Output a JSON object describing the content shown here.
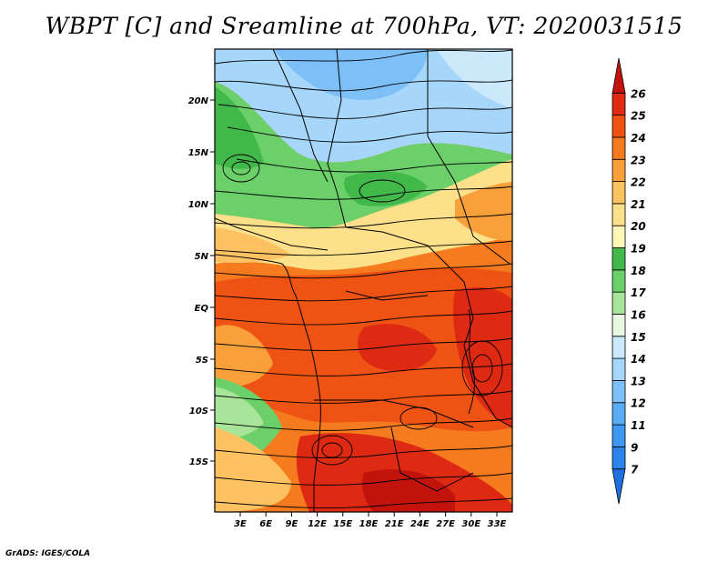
{
  "title": "WBPT [C] and Sreamline at 700hPa, VT: 2020031515",
  "footer": "GrADS: IGES/COLA",
  "map": {
    "lat_ticks": [
      "20N",
      "15N",
      "10N",
      "5N",
      "EQ",
      "5S",
      "10S",
      "15S"
    ],
    "lon_ticks": [
      "3E",
      "6E",
      "9E",
      "12E",
      "15E",
      "18E",
      "21E",
      "24E",
      "27E",
      "30E",
      "33E"
    ]
  },
  "colorbar": {
    "labels": [
      "7",
      "9",
      "11",
      "12",
      "13",
      "14",
      "15",
      "16",
      "17",
      "18",
      "19",
      "20",
      "21",
      "22",
      "23",
      "24",
      "25",
      "26"
    ],
    "colors": [
      "#1e6fe0",
      "#2b84ea",
      "#3f98f0",
      "#5aabf5",
      "#7dc0f8",
      "#a6d6fa",
      "#cbe9fb",
      "#e8f7e2",
      "#a8e49a",
      "#6cd06a",
      "#42b84a",
      "#fcf7b6",
      "#fde08a",
      "#fcc262",
      "#f9a03b",
      "#f57b1e",
      "#ee5313",
      "#de2a12",
      "#c2140c"
    ]
  }
}
